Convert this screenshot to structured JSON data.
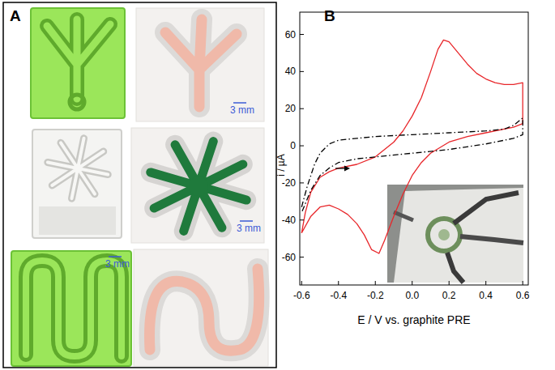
{
  "panels": [
    {
      "label": "A",
      "scale_bar_labels": [
        "3 mm",
        "3 mm",
        "3 mm"
      ]
    },
    {
      "label": "B"
    }
  ],
  "chart_data": {
    "type": "line",
    "x_label": "E / V vs. graphite PRE",
    "y_label": "i / µA",
    "xlim": [
      -0.61,
      0.63
    ],
    "ylim": [
      -75,
      72
    ],
    "xticks": [
      -0.6,
      -0.4,
      -0.2,
      {
        "value": 0,
        "label": "0.0"
      },
      0.2,
      0.4,
      0.6
    ],
    "yticks": [
      -60,
      -40,
      -20,
      0,
      20,
      40,
      60
    ],
    "grid": false,
    "series": [
      {
        "color": "#e8262a",
        "line_style": "solid",
        "x": [
          -0.6,
          -0.58,
          -0.55,
          -0.5,
          -0.45,
          -0.4,
          -0.3,
          -0.2,
          -0.1,
          -0.05,
          0.0,
          0.05,
          0.1,
          0.14,
          0.17,
          0.2,
          0.25,
          0.3,
          0.35,
          0.4,
          0.45,
          0.5,
          0.55,
          0.6,
          0.6,
          0.55,
          0.5,
          0.4,
          0.3,
          0.2,
          0.1,
          0.05,
          0.0,
          -0.05,
          -0.1,
          -0.15,
          -0.18,
          -0.22,
          -0.26,
          -0.3,
          -0.35,
          -0.4,
          -0.45,
          -0.5,
          -0.55,
          -0.6
        ],
        "values": [
          -47,
          -36,
          -25,
          -17,
          -14,
          -12,
          -10,
          -6,
          2,
          8,
          16,
          26,
          40,
          52,
          57,
          56,
          50,
          44,
          39,
          36,
          34,
          33,
          33,
          34,
          12,
          10,
          9,
          7,
          5,
          2,
          -4,
          -9,
          -16,
          -26,
          -38,
          -51,
          -58,
          -56,
          -48,
          -42,
          -37,
          -34,
          -32,
          -33,
          -38,
          -47
        ]
      },
      {
        "color": "#000000",
        "line_style": "dashdot",
        "x": [
          -0.6,
          -0.57,
          -0.53,
          -0.5,
          -0.45,
          -0.4,
          -0.3,
          -0.2,
          0.0,
          0.2,
          0.4,
          0.5,
          0.55,
          0.6,
          0.6,
          0.55,
          0.5,
          0.4,
          0.2,
          0.0,
          -0.2,
          -0.3,
          -0.4,
          -0.45,
          -0.5,
          -0.55,
          -0.6
        ],
        "values": [
          -33,
          -22,
          -10,
          -4,
          1,
          3,
          4,
          5,
          6,
          7,
          8,
          9,
          11,
          15,
          6,
          4,
          3,
          1,
          -2,
          -4,
          -6,
          -7,
          -9,
          -12,
          -16,
          -24,
          -36
        ]
      }
    ]
  }
}
